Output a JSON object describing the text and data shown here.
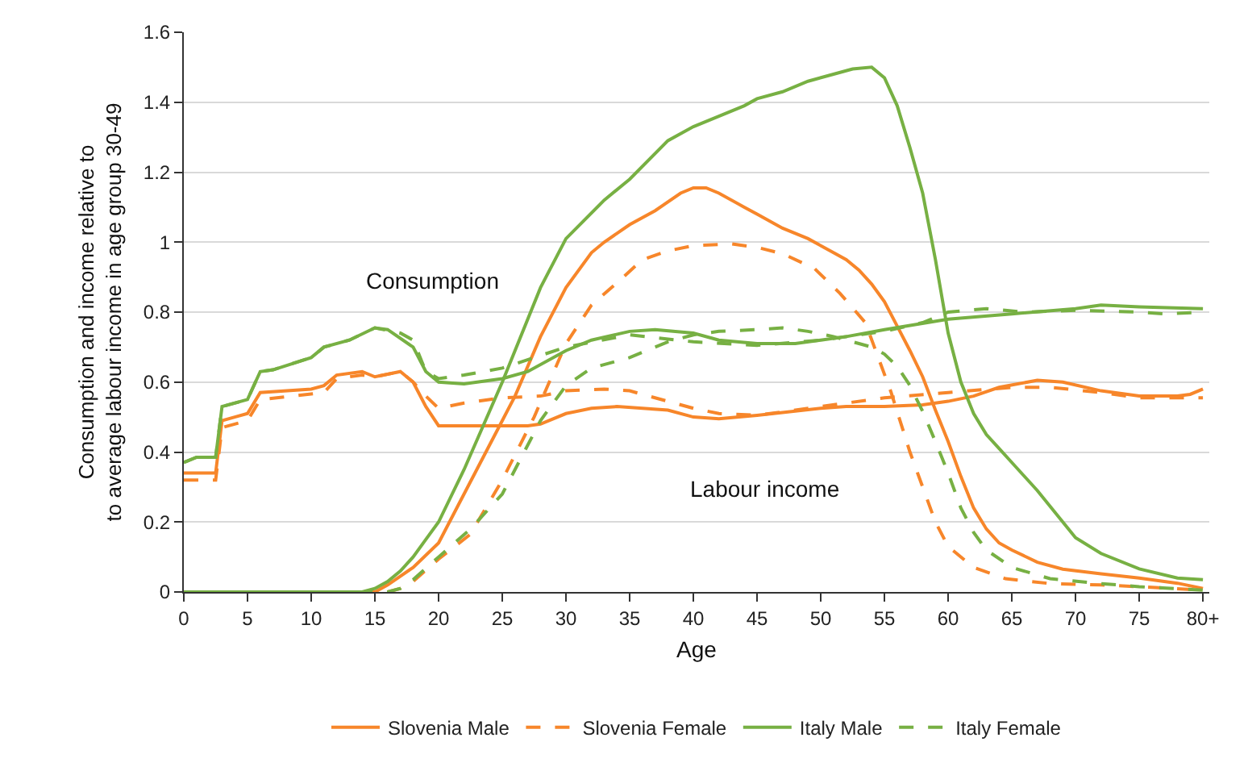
{
  "chart_data": {
    "type": "line",
    "xlabel": "Age",
    "ylabel": "Consumption and income relative to\nto average labour income in age group 30-49",
    "xlim": [
      0,
      80.5
    ],
    "ylim": [
      0,
      1.6
    ],
    "xticks": [
      0,
      5,
      10,
      15,
      20,
      25,
      30,
      35,
      40,
      45,
      50,
      55,
      60,
      65,
      70,
      75,
      {
        "value": 80,
        "label": "80+"
      }
    ],
    "yticks": [
      0,
      0.2,
      0.4,
      0.6,
      0.8,
      1,
      1.2,
      1.4,
      1.6
    ],
    "grid": "y",
    "legend": "bottom",
    "marker": "none",
    "annotations": [
      "Consumption",
      "Labour income"
    ],
    "series": [
      {
        "name": "Slovenia Male",
        "color": "#f7862a",
        "line_style": "solid",
        "x": [
          0,
          2.5,
          3,
          4,
          5,
          6,
          10,
          11,
          12,
          14,
          15,
          17,
          18,
          19,
          20,
          25,
          27,
          28,
          30,
          32,
          34,
          38,
          40,
          42,
          45,
          50,
          52,
          55,
          58,
          60,
          62,
          64,
          67,
          69,
          72,
          75,
          78,
          79,
          80
        ],
        "values": [
          0.34,
          0.34,
          0.49,
          0.5,
          0.51,
          0.57,
          0.58,
          0.59,
          0.62,
          0.63,
          0.615,
          0.63,
          0.6,
          0.53,
          0.475,
          0.475,
          0.475,
          0.48,
          0.51,
          0.525,
          0.53,
          0.52,
          0.5,
          0.495,
          0.505,
          0.525,
          0.53,
          0.53,
          0.535,
          0.545,
          0.56,
          0.585,
          0.605,
          0.6,
          0.575,
          0.56,
          0.56,
          0.565,
          0.58
        ]
      },
      {
        "color": "#f7862a",
        "line_style": "solid",
        "x": [
          0,
          15,
          16,
          18,
          20,
          22,
          25,
          26,
          28,
          30,
          32,
          33,
          35,
          37,
          39,
          40,
          41,
          42,
          44,
          45,
          47,
          49,
          51,
          52,
          53,
          54,
          55,
          56,
          57,
          58,
          59,
          60,
          61,
          62,
          63,
          64,
          65,
          67,
          69,
          72,
          75,
          78,
          80
        ],
        "values": [
          0,
          0,
          0.02,
          0.07,
          0.14,
          0.28,
          0.49,
          0.56,
          0.73,
          0.87,
          0.97,
          1.0,
          1.05,
          1.09,
          1.14,
          1.155,
          1.155,
          1.14,
          1.1,
          1.08,
          1.04,
          1.01,
          0.97,
          0.95,
          0.92,
          0.88,
          0.83,
          0.76,
          0.69,
          0.615,
          0.52,
          0.43,
          0.33,
          0.24,
          0.18,
          0.14,
          0.12,
          0.085,
          0.065,
          0.052,
          0.04,
          0.025,
          0.01
        ]
      },
      {
        "name": "Slovenia Female",
        "color": "#f7862a",
        "line_style": "dashed",
        "x": [
          0,
          2.5,
          3,
          5,
          6,
          11,
          12,
          14,
          15,
          17,
          18,
          19,
          20,
          22,
          25,
          28,
          30,
          33,
          35,
          40,
          42,
          45,
          50,
          55,
          60,
          65,
          68,
          72,
          75,
          78,
          80
        ],
        "values": [
          0.32,
          0.32,
          0.47,
          0.49,
          0.55,
          0.57,
          0.61,
          0.62,
          0.615,
          0.63,
          0.6,
          0.56,
          0.525,
          0.54,
          0.555,
          0.56,
          0.575,
          0.58,
          0.575,
          0.525,
          0.51,
          0.505,
          0.53,
          0.555,
          0.57,
          0.585,
          0.585,
          0.57,
          0.555,
          0.555,
          0.555
        ]
      },
      {
        "color": "#f7862a",
        "line_style": "dashed",
        "x": [
          0,
          16,
          17,
          18,
          20,
          22.5,
          25,
          27.5,
          30,
          32,
          34.5,
          36,
          38,
          40,
          43,
          45,
          47,
          49.5,
          51.5,
          53.5,
          55.5,
          57,
          59,
          60,
          62,
          64.5,
          68,
          72,
          75,
          80
        ],
        "values": [
          0,
          0,
          0.01,
          0.03,
          0.094,
          0.165,
          0.32,
          0.5,
          0.71,
          0.82,
          0.9,
          0.95,
          0.975,
          0.99,
          0.995,
          0.985,
          0.967,
          0.925,
          0.854,
          0.77,
          0.573,
          0.4,
          0.2,
          0.13,
          0.07,
          0.038,
          0.024,
          0.02,
          0.015,
          0.005
        ]
      },
      {
        "name": "Italy Male",
        "color": "#77b043",
        "line_style": "solid",
        "x": [
          0,
          1,
          2.5,
          3,
          5,
          6,
          7,
          10,
          11,
          13,
          15,
          16,
          18,
          19,
          20,
          22,
          25,
          27,
          30,
          32,
          35,
          37,
          40,
          42,
          45,
          48,
          50,
          52,
          55,
          60,
          65,
          70,
          72,
          75,
          80
        ],
        "values": [
          0.37,
          0.385,
          0.385,
          0.53,
          0.55,
          0.63,
          0.635,
          0.67,
          0.7,
          0.72,
          0.755,
          0.75,
          0.7,
          0.63,
          0.6,
          0.595,
          0.61,
          0.63,
          0.69,
          0.72,
          0.745,
          0.75,
          0.74,
          0.72,
          0.71,
          0.71,
          0.72,
          0.73,
          0.75,
          0.78,
          0.795,
          0.81,
          0.82,
          0.815,
          0.81
        ]
      },
      {
        "color": "#77b043",
        "line_style": "solid",
        "x": [
          0,
          14,
          15,
          16,
          17,
          18,
          19,
          20,
          22,
          25,
          28,
          30,
          33,
          35,
          38,
          40,
          42,
          44,
          45,
          47,
          49,
          51,
          52.5,
          54,
          55,
          56,
          57,
          58,
          59,
          60,
          61,
          62,
          63,
          64,
          65,
          67,
          69,
          70,
          72,
          75,
          78,
          80
        ],
        "values": [
          0,
          0,
          0.01,
          0.03,
          0.06,
          0.1,
          0.15,
          0.2,
          0.35,
          0.6,
          0.87,
          1.01,
          1.12,
          1.18,
          1.29,
          1.33,
          1.36,
          1.39,
          1.41,
          1.43,
          1.46,
          1.48,
          1.495,
          1.5,
          1.47,
          1.39,
          1.27,
          1.14,
          0.95,
          0.74,
          0.6,
          0.51,
          0.45,
          0.41,
          0.37,
          0.29,
          0.2,
          0.155,
          0.11,
          0.066,
          0.04,
          0.035
        ]
      },
      {
        "name": "Italy Female",
        "color": "#77b043",
        "line_style": "dashed",
        "x": [
          0,
          1,
          2.5,
          3,
          5,
          6,
          7,
          10,
          11,
          13,
          15,
          17,
          18,
          19,
          20,
          22,
          25,
          30,
          35,
          40,
          45,
          50,
          55,
          58,
          60,
          63,
          66,
          70,
          75,
          77,
          80
        ],
        "values": [
          0.37,
          0.385,
          0.385,
          0.53,
          0.55,
          0.63,
          0.635,
          0.67,
          0.7,
          0.72,
          0.755,
          0.74,
          0.72,
          0.63,
          0.61,
          0.62,
          0.64,
          0.7,
          0.735,
          0.715,
          0.705,
          0.72,
          0.745,
          0.77,
          0.8,
          0.81,
          0.8,
          0.805,
          0.8,
          0.795,
          0.8
        ]
      },
      {
        "color": "#77b043",
        "line_style": "dashed",
        "x": [
          0,
          16,
          17,
          18,
          20,
          22.5,
          25,
          28,
          30,
          32,
          35,
          38,
          40,
          42,
          45,
          47,
          49,
          51,
          53,
          54,
          55,
          56,
          57,
          58,
          59,
          60,
          61,
          62,
          63,
          65,
          68,
          72,
          75,
          80
        ],
        "values": [
          0,
          0,
          0.01,
          0.035,
          0.1,
          0.18,
          0.28,
          0.49,
          0.59,
          0.64,
          0.67,
          0.715,
          0.735,
          0.745,
          0.75,
          0.755,
          0.745,
          0.73,
          0.71,
          0.7,
          0.68,
          0.645,
          0.59,
          0.516,
          0.43,
          0.34,
          0.24,
          0.17,
          0.12,
          0.07,
          0.038,
          0.024,
          0.015,
          0.005
        ]
      }
    ]
  }
}
